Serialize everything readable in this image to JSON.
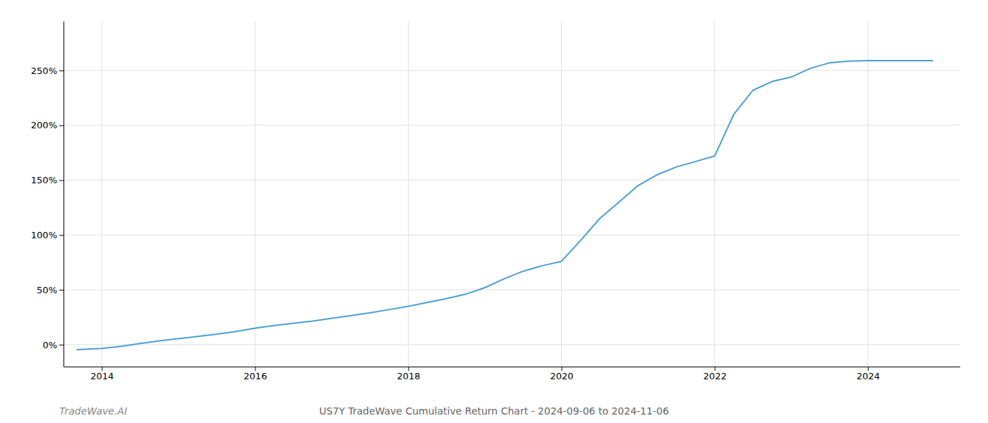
{
  "chart_data": {
    "type": "line",
    "title": "US7Y TradeWave Cumulative Return Chart - 2024-09-06 to 2024-11-06",
    "annotations": [
      "TradeWave.AI"
    ],
    "color": "#4a9fd4",
    "grid": true,
    "x": [
      2013.67,
      2014.0,
      2014.25,
      2014.5,
      2014.75,
      2015.0,
      2015.25,
      2015.5,
      2015.75,
      2016.0,
      2016.25,
      2016.5,
      2016.75,
      2017.0,
      2017.25,
      2017.5,
      2017.75,
      2018.0,
      2018.25,
      2018.5,
      2018.75,
      2019.0,
      2019.25,
      2019.5,
      2019.75,
      2020.0,
      2020.25,
      2020.5,
      2020.75,
      2021.0,
      2021.25,
      2021.5,
      2021.75,
      2022.0,
      2022.25,
      2022.5,
      2022.75,
      2023.0,
      2023.25,
      2023.5,
      2023.75,
      2024.0,
      2024.25,
      2024.5,
      2024.75,
      2024.85
    ],
    "values": [
      -4.5,
      -3.5,
      -1.5,
      1.0,
      3.5,
      5.5,
      7.5,
      9.5,
      12.0,
      15.0,
      17.5,
      19.5,
      21.5,
      24.0,
      26.5,
      29.0,
      32.0,
      35.0,
      38.5,
      42.0,
      46.0,
      52.0,
      60.0,
      67.0,
      72.0,
      76.0,
      95.0,
      115.0,
      130.0,
      145.0,
      155.0,
      162.0,
      167.0,
      172.0,
      210.0,
      232.0,
      240.0,
      244.0,
      252.0,
      257.0,
      258.5,
      259.0,
      259.0,
      259.0,
      259.0,
      259.0
    ],
    "xlim": [
      2013.5,
      2025.2
    ],
    "ylim": [
      -20,
      295
    ],
    "xticks": [
      2014,
      2016,
      2018,
      2020,
      2022,
      2024
    ],
    "yticks": [
      {
        "value": 0,
        "label": "0%"
      },
      {
        "value": 50,
        "label": "50%"
      },
      {
        "value": 100,
        "label": "100%"
      },
      {
        "value": 150,
        "label": "150%"
      },
      {
        "value": 200,
        "label": "200%"
      },
      {
        "value": 250,
        "label": "250%"
      }
    ]
  }
}
